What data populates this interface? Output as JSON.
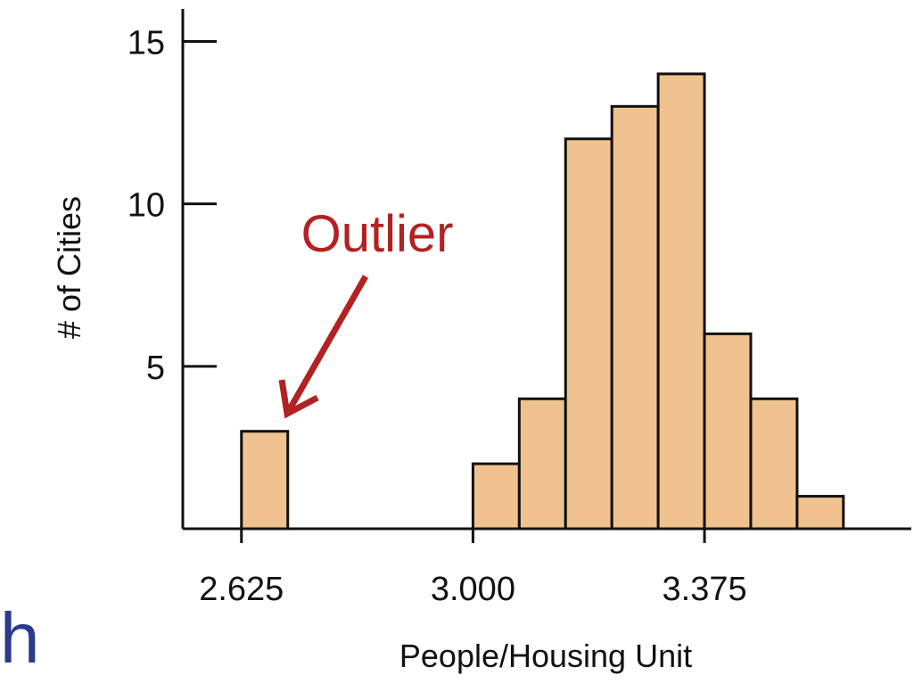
{
  "chart_data": {
    "type": "bar",
    "title": "",
    "xlabel": "People/Housing Unit",
    "ylabel": "# of Cities",
    "x_ticks": [
      "2.625",
      "3.000",
      "3.375"
    ],
    "x_tick_values": [
      2.625,
      3.0,
      3.375
    ],
    "y_ticks": [
      "5",
      "10",
      "15"
    ],
    "y_tick_values": [
      5,
      10,
      15
    ],
    "xlim": [
      2.53,
      3.71
    ],
    "ylim": [
      0,
      16
    ],
    "bin_width": 0.075,
    "bins": [
      {
        "start": 2.625,
        "count": 3
      },
      {
        "start": 3.0,
        "count": 2
      },
      {
        "start": 3.075,
        "count": 4
      },
      {
        "start": 3.15,
        "count": 12
      },
      {
        "start": 3.225,
        "count": 13
      },
      {
        "start": 3.3,
        "count": 14
      },
      {
        "start": 3.375,
        "count": 6
      },
      {
        "start": 3.45,
        "count": 4
      },
      {
        "start": 3.525,
        "count": 1
      }
    ],
    "bar_color": "#f0c28f",
    "annotation": {
      "text": "Outlier",
      "color": "#b22222",
      "points_to_bin": 0
    },
    "grid": false,
    "legend": "none"
  },
  "stray_text": "h",
  "stray_color": "#2b3a8c"
}
